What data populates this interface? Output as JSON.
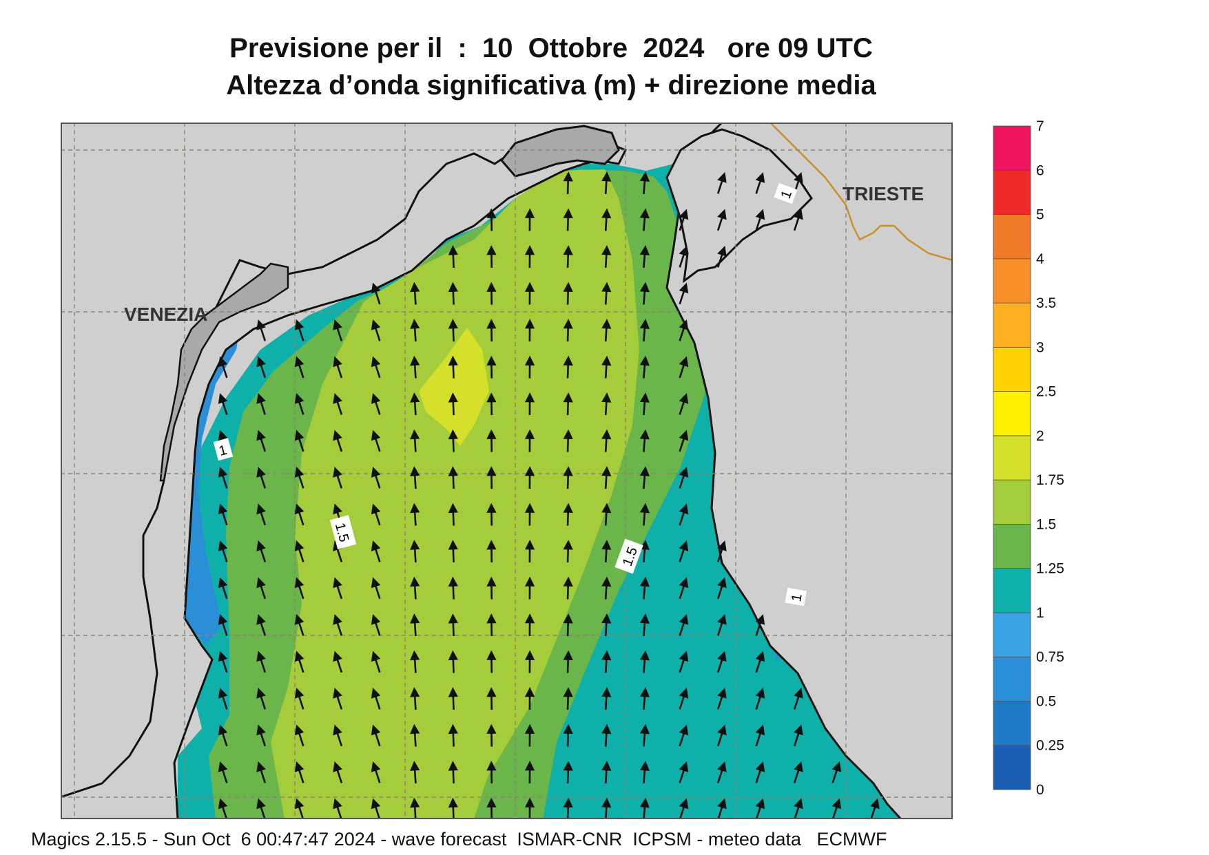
{
  "title": {
    "line1": "Previsione per il  :  10  Ottobre  2024   ore 09 UTC",
    "line2": "Altezza d’onda significativa (m) + direzione media"
  },
  "map": {
    "cities": [
      "VENEZIA",
      "TRIESTE"
    ],
    "contour_labels": [
      "1",
      "1.5",
      "1.5",
      "1",
      "1"
    ]
  },
  "legend": {
    "levels": [
      "0",
      "0.25",
      "0.5",
      "0.75",
      "1",
      "1.25",
      "1.5",
      "1.75",
      "2",
      "2.5",
      "3",
      "3.5",
      "4",
      "5",
      "6",
      "7"
    ],
    "colors": [
      "#1a5fb4",
      "#1f78c8",
      "#2b8fd8",
      "#3aa3e4",
      "#0fb0aa",
      "#6ab64a",
      "#a5cc3a",
      "#d4e02a",
      "#fff200",
      "#ffd200",
      "#ffb020",
      "#f8902a",
      "#f07a28",
      "#ee2a2a",
      "#ee1460"
    ]
  },
  "footer": "Magics 2.15.5 - Sun Oct  6 00:47:47 2024 - wave forecast  ISMAR-CNR  ICPSM - meteo data   ECMWF"
}
